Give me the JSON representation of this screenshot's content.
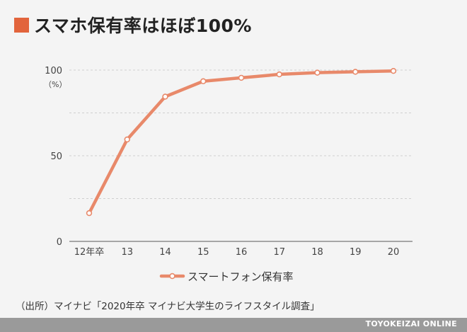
{
  "title": "スマホ保有率はほぼ100%",
  "source": "（出所）マイナビ「2020年卒 マイナビ大学生のライフスタイル調査」",
  "footer": "TOYOKEIZAI ONLINE",
  "colors": {
    "accent": "#e2643c",
    "line": "#e8896a"
  },
  "chart_data": {
    "type": "line",
    "categories": [
      "12年卒",
      "13",
      "14",
      "15",
      "16",
      "17",
      "18",
      "19",
      "20"
    ],
    "series": [
      {
        "name": "スマートフォン保有率",
        "values": [
          16.5,
          59.5,
          84.5,
          93.5,
          95.5,
          97.5,
          98.5,
          99,
          99.5
        ]
      }
    ],
    "y_ticks": [
      "0",
      "50",
      "100"
    ],
    "y_unit": "（%）",
    "ylim": [
      0,
      100
    ],
    "grid": true,
    "legend": "bottom"
  }
}
